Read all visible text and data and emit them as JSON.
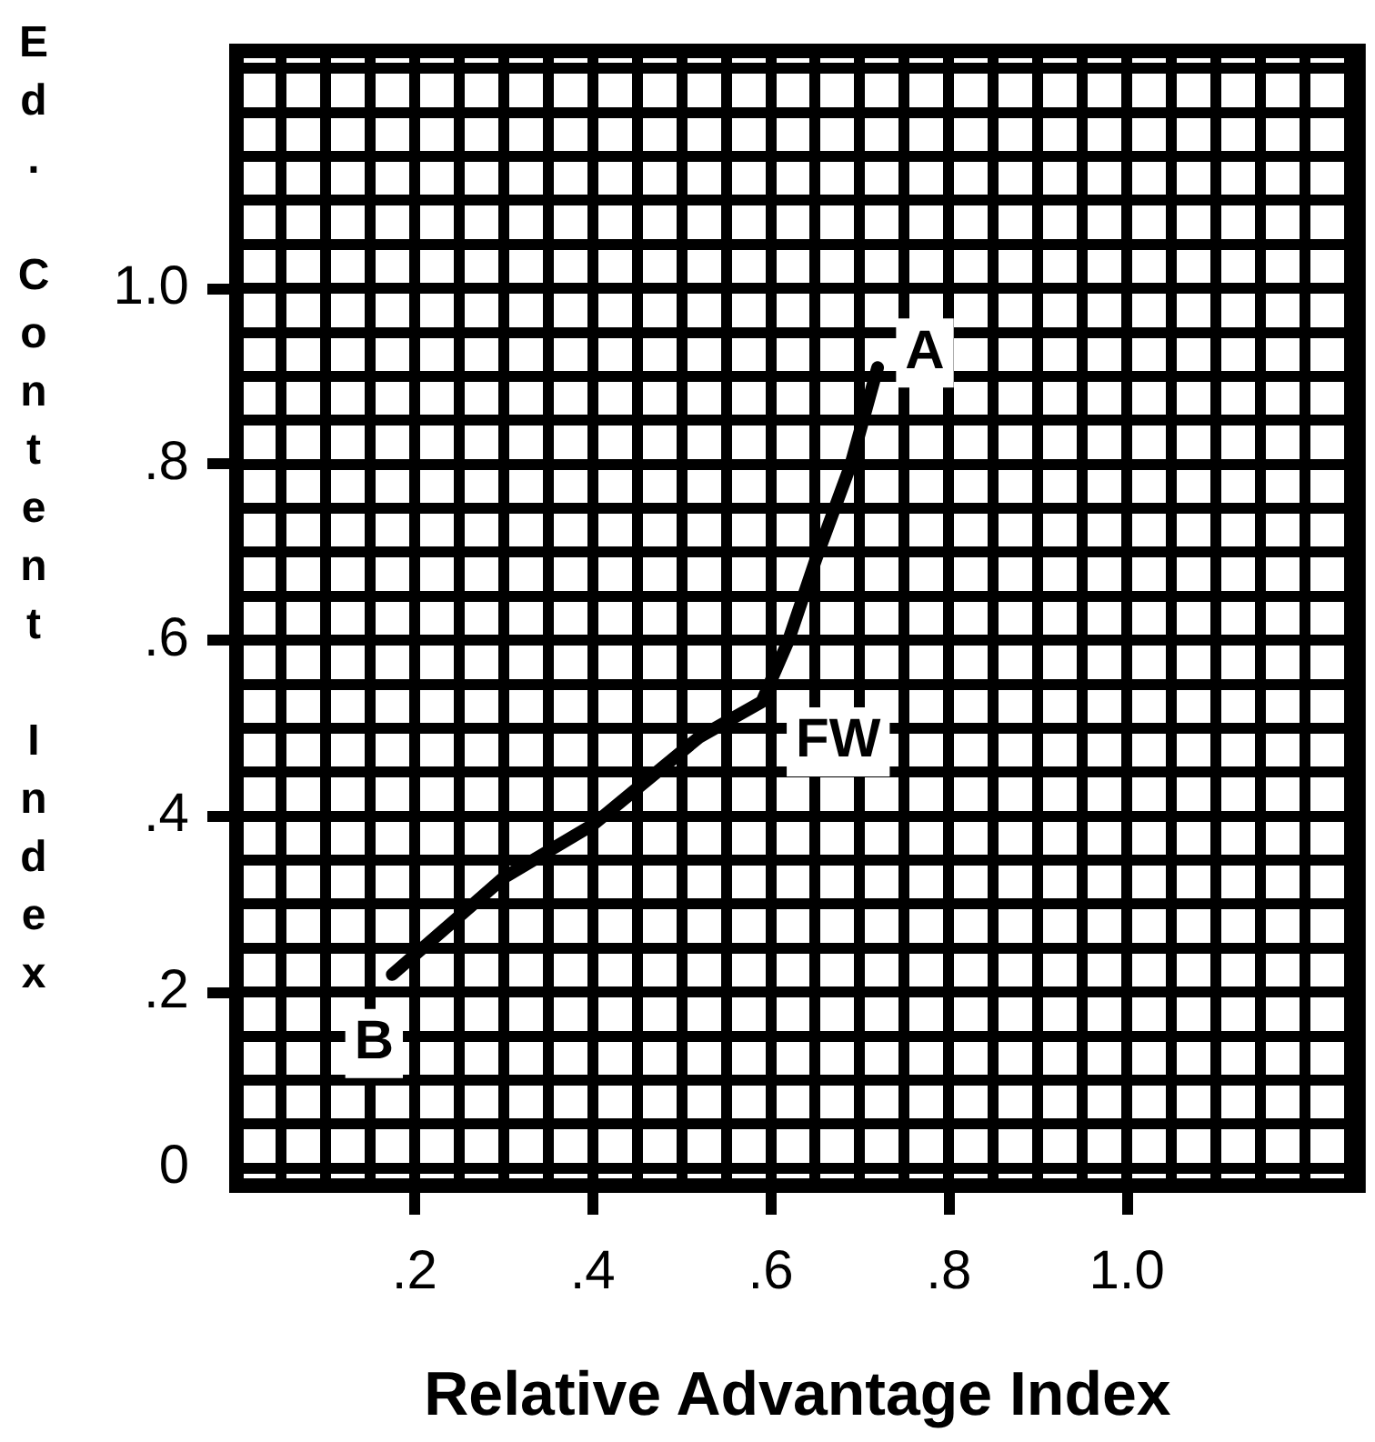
{
  "chart_data": {
    "type": "line",
    "xlabel": "Relative Advantage Index",
    "ylabel": "Ed. Content Index",
    "x": [
      0.175,
      0.3,
      0.4,
      0.46,
      0.52,
      0.59,
      0.62,
      0.65,
      0.69,
      0.72
    ],
    "series": [
      {
        "color": "#000000",
        "values": [
          0.22,
          0.33,
          0.39,
          0.44,
          0.49,
          0.53,
          0.6,
          0.69,
          0.8,
          0.91
        ]
      }
    ],
    "xlim": [
      0,
      1.26
    ],
    "ylim": [
      -0.02,
      1.27
    ],
    "xticks": [
      {
        "value": 0.05,
        "label": null
      },
      {
        "value": 0.1,
        "label": null
      },
      {
        "value": 0.15,
        "label": null
      },
      {
        "value": 0.2,
        "label": ".2"
      },
      {
        "value": 0.25,
        "label": null
      },
      {
        "value": 0.3,
        "label": null
      },
      {
        "value": 0.35,
        "label": null
      },
      {
        "value": 0.4,
        "label": ".4"
      },
      {
        "value": 0.45,
        "label": null
      },
      {
        "value": 0.5,
        "label": null
      },
      {
        "value": 0.55,
        "label": null
      },
      {
        "value": 0.6,
        "label": ".6"
      },
      {
        "value": 0.65,
        "label": null
      },
      {
        "value": 0.7,
        "label": null
      },
      {
        "value": 0.75,
        "label": null
      },
      {
        "value": 0.8,
        "label": ".8"
      },
      {
        "value": 0.85,
        "label": null
      },
      {
        "value": 0.9,
        "label": null
      },
      {
        "value": 0.95,
        "label": null
      },
      {
        "value": 1,
        "label": "1.0"
      },
      {
        "value": 1.05,
        "label": null
      },
      {
        "value": 1.1,
        "label": null
      },
      {
        "value": 1.15,
        "label": null
      },
      {
        "value": 1.2,
        "label": null
      },
      {
        "value": 1.25,
        "label": null
      }
    ],
    "yticks": [
      0,
      {
        "value": 0.05,
        "label": null
      },
      {
        "value": 0.1,
        "label": null
      },
      {
        "value": 0.15,
        "label": null
      },
      {
        "value": 0.2,
        "label": ".2"
      },
      {
        "value": 0.25,
        "label": null
      },
      {
        "value": 0.3,
        "label": null
      },
      {
        "value": 0.35,
        "label": null
      },
      {
        "value": 0.4,
        "label": ".4"
      },
      {
        "value": 0.45,
        "label": null
      },
      {
        "value": 0.5,
        "label": null
      },
      {
        "value": 0.55,
        "label": null
      },
      {
        "value": 0.6,
        "label": ".6"
      },
      {
        "value": 0.65,
        "label": null
      },
      {
        "value": 0.7,
        "label": null
      },
      {
        "value": 0.75,
        "label": null
      },
      {
        "value": 0.8,
        "label": ".8"
      },
      {
        "value": 0.85,
        "label": null
      },
      {
        "value": 0.9,
        "label": null
      },
      {
        "value": 0.95,
        "label": null
      },
      {
        "value": 1,
        "label": "1.0"
      },
      {
        "value": 1.05,
        "label": null
      },
      {
        "value": 1.1,
        "label": null
      },
      {
        "value": 1.15,
        "label": null
      },
      {
        "value": 1.2,
        "label": null
      },
      {
        "value": 1.25,
        "label": null
      }
    ],
    "annotations": [
      {
        "text": "A",
        "x": 0.72,
        "y": 0.91
      },
      {
        "text": "FW",
        "x": 0.59,
        "y": 0.53
      },
      {
        "text": "B",
        "x": 0.175,
        "y": 0.22
      }
    ],
    "grid": true,
    "legend": false,
    "marker": "none",
    "line_style": "solid"
  }
}
